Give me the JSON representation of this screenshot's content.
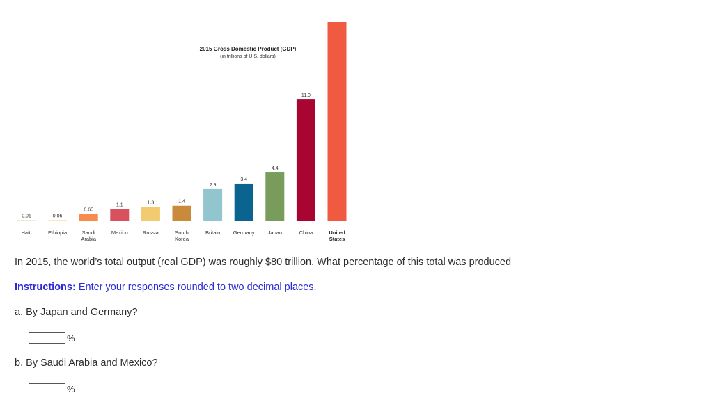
{
  "chart_data": {
    "type": "bar",
    "title": "2015 Gross Domestic Product (GDP)",
    "subtitle": "(in trillions of U.S. dollars)",
    "categories": [
      {
        "name": "Haiti",
        "line1": "Haiti",
        "line2": ""
      },
      {
        "name": "Ethiopia",
        "line1": "Ethiopia",
        "line2": ""
      },
      {
        "name": "Saudi Arabia",
        "line1": "Saudi",
        "line2": "Arabia"
      },
      {
        "name": "Mexico",
        "line1": "Mexico",
        "line2": ""
      },
      {
        "name": "Russia",
        "line1": "Russia",
        "line2": ""
      },
      {
        "name": "South Korea",
        "line1": "South",
        "line2": "Korea"
      },
      {
        "name": "Britain",
        "line1": "Britain",
        "line2": ""
      },
      {
        "name": "Germany",
        "line1": "Germany",
        "line2": ""
      },
      {
        "name": "Japan",
        "line1": "Japan",
        "line2": ""
      },
      {
        "name": "China",
        "line1": "China",
        "line2": ""
      },
      {
        "name": "United States",
        "line1": "United",
        "line2": "States"
      }
    ],
    "values": [
      0.01,
      0.06,
      0.65,
      1.1,
      1.3,
      1.4,
      2.9,
      3.4,
      4.4,
      11.0,
      18.0
    ],
    "value_labels": [
      "0.01",
      "0.06",
      "0.65",
      "1.1",
      "1.3",
      "1.4",
      "2.9",
      "3.4",
      "4.4",
      "11.0",
      ""
    ],
    "colors": [
      "#e8f2c8",
      "#fbe7b5",
      "#f58c4b",
      "#d9505f",
      "#f2ca6f",
      "#c98a3c",
      "#92c6ce",
      "#0b6490",
      "#789c5c",
      "#a80532",
      "#f05a40"
    ],
    "bold_labels": [
      "United States"
    ]
  },
  "question": {
    "intro": "In 2015, the world’s total output (real GDP) was roughly $80 trillion. What percentage of this total was produced",
    "instructions_label": "Instructions:",
    "instructions_text": " Enter your responses rounded to two decimal places.",
    "part_a": "a. By Japan and Germany?",
    "part_b": "b. By Saudi Arabia and Mexico?",
    "answer_a": "",
    "answer_b": "",
    "unit": "%"
  }
}
